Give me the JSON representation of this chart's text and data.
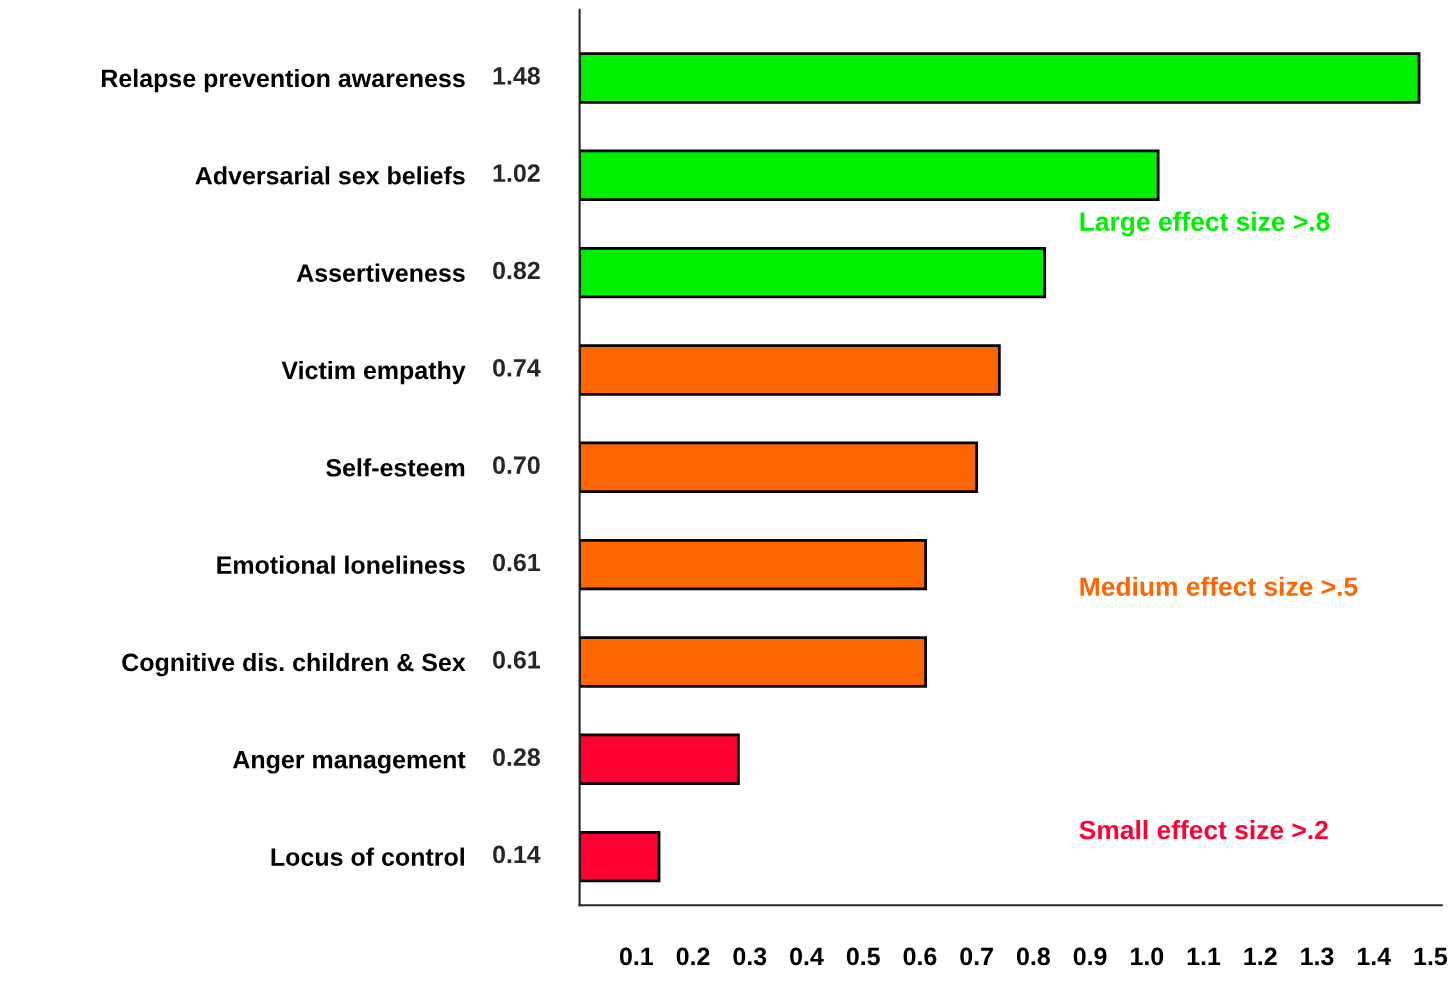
{
  "chart_data": {
    "type": "bar",
    "orientation": "horizontal",
    "categories": [
      "Relapse prevention awareness",
      "Adversarial sex beliefs",
      "Assertiveness",
      "Victim empathy",
      "Self-esteem",
      "Emotional loneliness",
      "Cognitive dis. children & Sex",
      "Anger management",
      "Locus of control"
    ],
    "series": [
      {
        "name": "Large effect size >.8",
        "color": "#00ee00",
        "values": [
          1.48,
          1.02,
          0.82,
          null,
          null,
          null,
          null,
          null,
          null
        ]
      },
      {
        "name": "Medium effect size >.5",
        "color": "#ff6600",
        "values": [
          null,
          null,
          null,
          0.74,
          0.7,
          0.61,
          0.61,
          null,
          null
        ]
      },
      {
        "name": "Small effect size >.2",
        "color": "#ff0033",
        "values": [
          null,
          null,
          null,
          null,
          null,
          null,
          null,
          0.28,
          0.14
        ]
      }
    ],
    "value_labels": [
      "1.48",
      "1.02",
      "0.82",
      "0.74",
      "0.70",
      "0.61",
      "0.61",
      "0.28",
      "0.14"
    ],
    "xlim": [
      0,
      1.52
    ],
    "xticks": [
      0.1,
      0.2,
      0.3,
      0.4,
      0.5,
      0.6,
      0.7,
      0.8,
      0.9,
      {
        "value": 1,
        "label": "1.0"
      },
      1.1,
      1.2,
      1.3,
      1.4,
      1.5
    ],
    "legend": "right",
    "grid": false
  }
}
